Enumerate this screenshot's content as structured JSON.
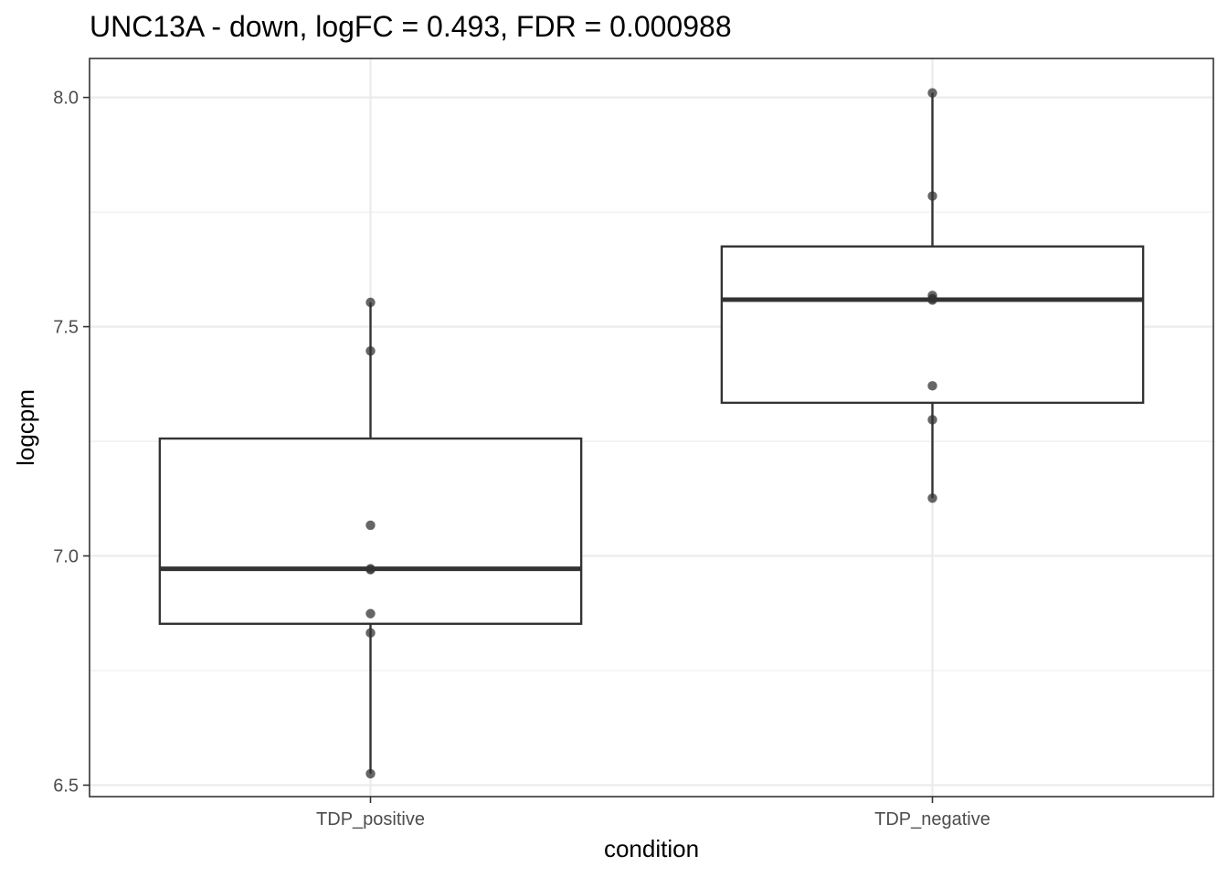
{
  "chart_data": {
    "type": "boxplot",
    "title": "UNC13A - down, logFC = 0.493, FDR = 0.000988",
    "xlabel": "condition",
    "ylabel": "logcpm",
    "categories": [
      "TDP_positive",
      "TDP_negative"
    ],
    "ylim": [
      6.475,
      8.085
    ],
    "yticks": [
      6.5,
      7.0,
      7.5,
      8.0
    ],
    "ytick_labels": [
      "6.5",
      "7.0",
      "7.5",
      "8.0"
    ],
    "grid": true,
    "groups": [
      {
        "name": "TDP_positive",
        "q1": 6.852,
        "median": 6.972,
        "q3": 7.256,
        "whisker_low": 6.525,
        "whisker_high": 7.553,
        "points": [
          7.553,
          7.447,
          7.067,
          6.972,
          6.97,
          6.874,
          6.832,
          6.525
        ]
      },
      {
        "name": "TDP_negative",
        "q1": 7.334,
        "median": 7.559,
        "q3": 7.675,
        "whisker_low": 7.126,
        "whisker_high": 8.01,
        "points": [
          8.01,
          7.785,
          7.568,
          7.561,
          7.558,
          7.371,
          7.297,
          7.126
        ]
      }
    ],
    "point_color": "#333333",
    "box_color": "#333333",
    "grid_color": "#ebebeb"
  }
}
